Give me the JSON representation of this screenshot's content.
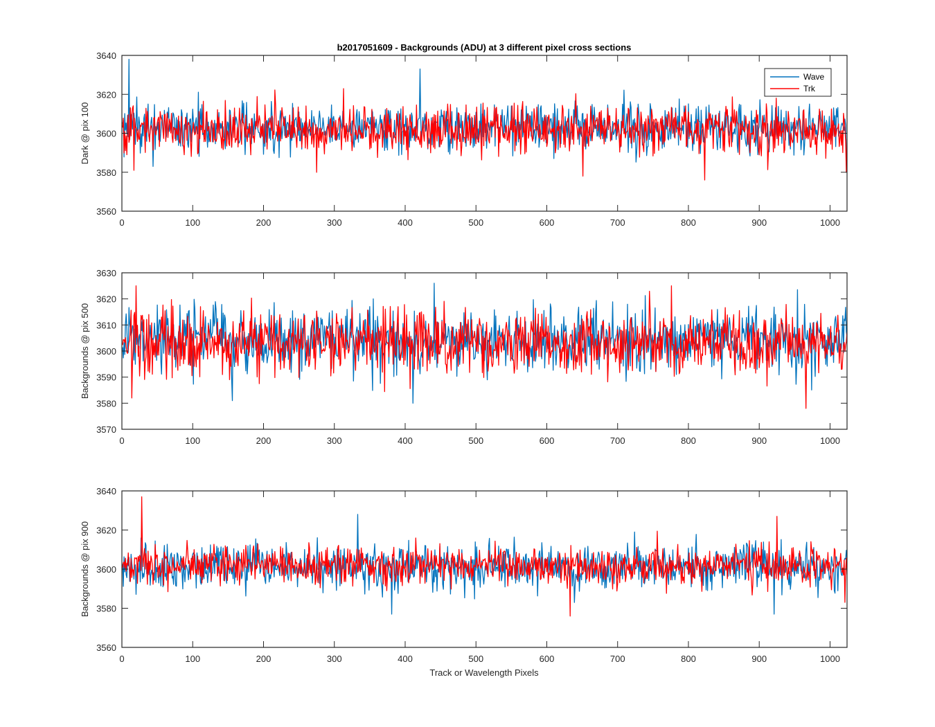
{
  "figure_title": "b2017051609 - Backgrounds (ADU) at 3 different pixel cross sections",
  "xlabel": "Track or Wavelength Pixels",
  "legend": {
    "placement": "top-right",
    "entries": [
      {
        "label": "Wave",
        "color": "#0072BD"
      },
      {
        "label": "Trk",
        "color": "#FF0000"
      }
    ]
  },
  "chart_data": [
    {
      "type": "line",
      "title": "b2017051609 - Backgrounds (ADU) at 3 different pixel cross sections",
      "ylabel": "Dark @ pix 100",
      "xlabel": "",
      "xlim": [
        0,
        1024
      ],
      "ylim": [
        3560,
        3640
      ],
      "xticks": [
        0,
        100,
        200,
        300,
        400,
        500,
        600,
        700,
        800,
        900,
        1000
      ],
      "yticks": [
        3560,
        3580,
        3600,
        3620,
        3640
      ],
      "grid": false,
      "series": [
        {
          "name": "Wave",
          "color": "#0072BD",
          "n_points": 1024,
          "mean": 3603,
          "noise_sd": 6,
          "notable": [
            {
              "x": 9,
              "y": 3638
            },
            {
              "x": 420,
              "y": 3633
            },
            {
              "x": 43,
              "y": 3583
            }
          ]
        },
        {
          "name": "Trk",
          "color": "#FF0000",
          "n_points": 1024,
          "mean": 3602,
          "noise_sd": 6,
          "notable": [
            {
              "x": 16,
              "y": 3581
            },
            {
              "x": 650,
              "y": 3578
            },
            {
              "x": 822,
              "y": 3576
            },
            {
              "x": 1022,
              "y": 3580
            }
          ]
        }
      ]
    },
    {
      "type": "line",
      "ylabel": "Backgrounds @ pix 500",
      "xlabel": "",
      "xlim": [
        0,
        1024
      ],
      "ylim": [
        3570,
        3630
      ],
      "xticks": [
        0,
        100,
        200,
        300,
        400,
        500,
        600,
        700,
        800,
        900,
        1000
      ],
      "yticks": [
        3570,
        3580,
        3590,
        3600,
        3610,
        3620,
        3630
      ],
      "grid": false,
      "series": [
        {
          "name": "Wave",
          "color": "#0072BD",
          "n_points": 1024,
          "mean": 3604,
          "noise_sd": 6,
          "notable": [
            {
              "x": 440,
              "y": 3626
            },
            {
              "x": 155,
              "y": 3581
            },
            {
              "x": 410,
              "y": 3580
            }
          ]
        },
        {
          "name": "Trk",
          "color": "#FF0000",
          "n_points": 1024,
          "mean": 3603,
          "noise_sd": 6,
          "notable": [
            {
              "x": 19,
              "y": 3625
            },
            {
              "x": 13,
              "y": 3582
            },
            {
              "x": 775,
              "y": 3625
            },
            {
              "x": 965,
              "y": 3578
            }
          ]
        }
      ]
    },
    {
      "type": "line",
      "ylabel": "Backgrounds @ pix 900",
      "xlabel": "Track or Wavelength Pixels",
      "xlim": [
        0,
        1024
      ],
      "ylim": [
        3560,
        3640
      ],
      "xticks": [
        0,
        100,
        200,
        300,
        400,
        500,
        600,
        700,
        800,
        900,
        1000
      ],
      "yticks": [
        3560,
        3580,
        3600,
        3620,
        3640
      ],
      "grid": false,
      "series": [
        {
          "name": "Wave",
          "color": "#0072BD",
          "n_points": 1024,
          "mean": 3601,
          "noise_sd": 6,
          "notable": [
            {
              "x": 332,
              "y": 3628
            },
            {
              "x": 380,
              "y": 3577
            },
            {
              "x": 920,
              "y": 3577
            }
          ]
        },
        {
          "name": "Trk",
          "color": "#FF0000",
          "n_points": 1024,
          "mean": 3602,
          "noise_sd": 5,
          "notable": [
            {
              "x": 27,
              "y": 3637
            },
            {
              "x": 924,
              "y": 3627
            },
            {
              "x": 632,
              "y": 3576
            },
            {
              "x": 1020,
              "y": 3583
            }
          ]
        }
      ]
    }
  ]
}
